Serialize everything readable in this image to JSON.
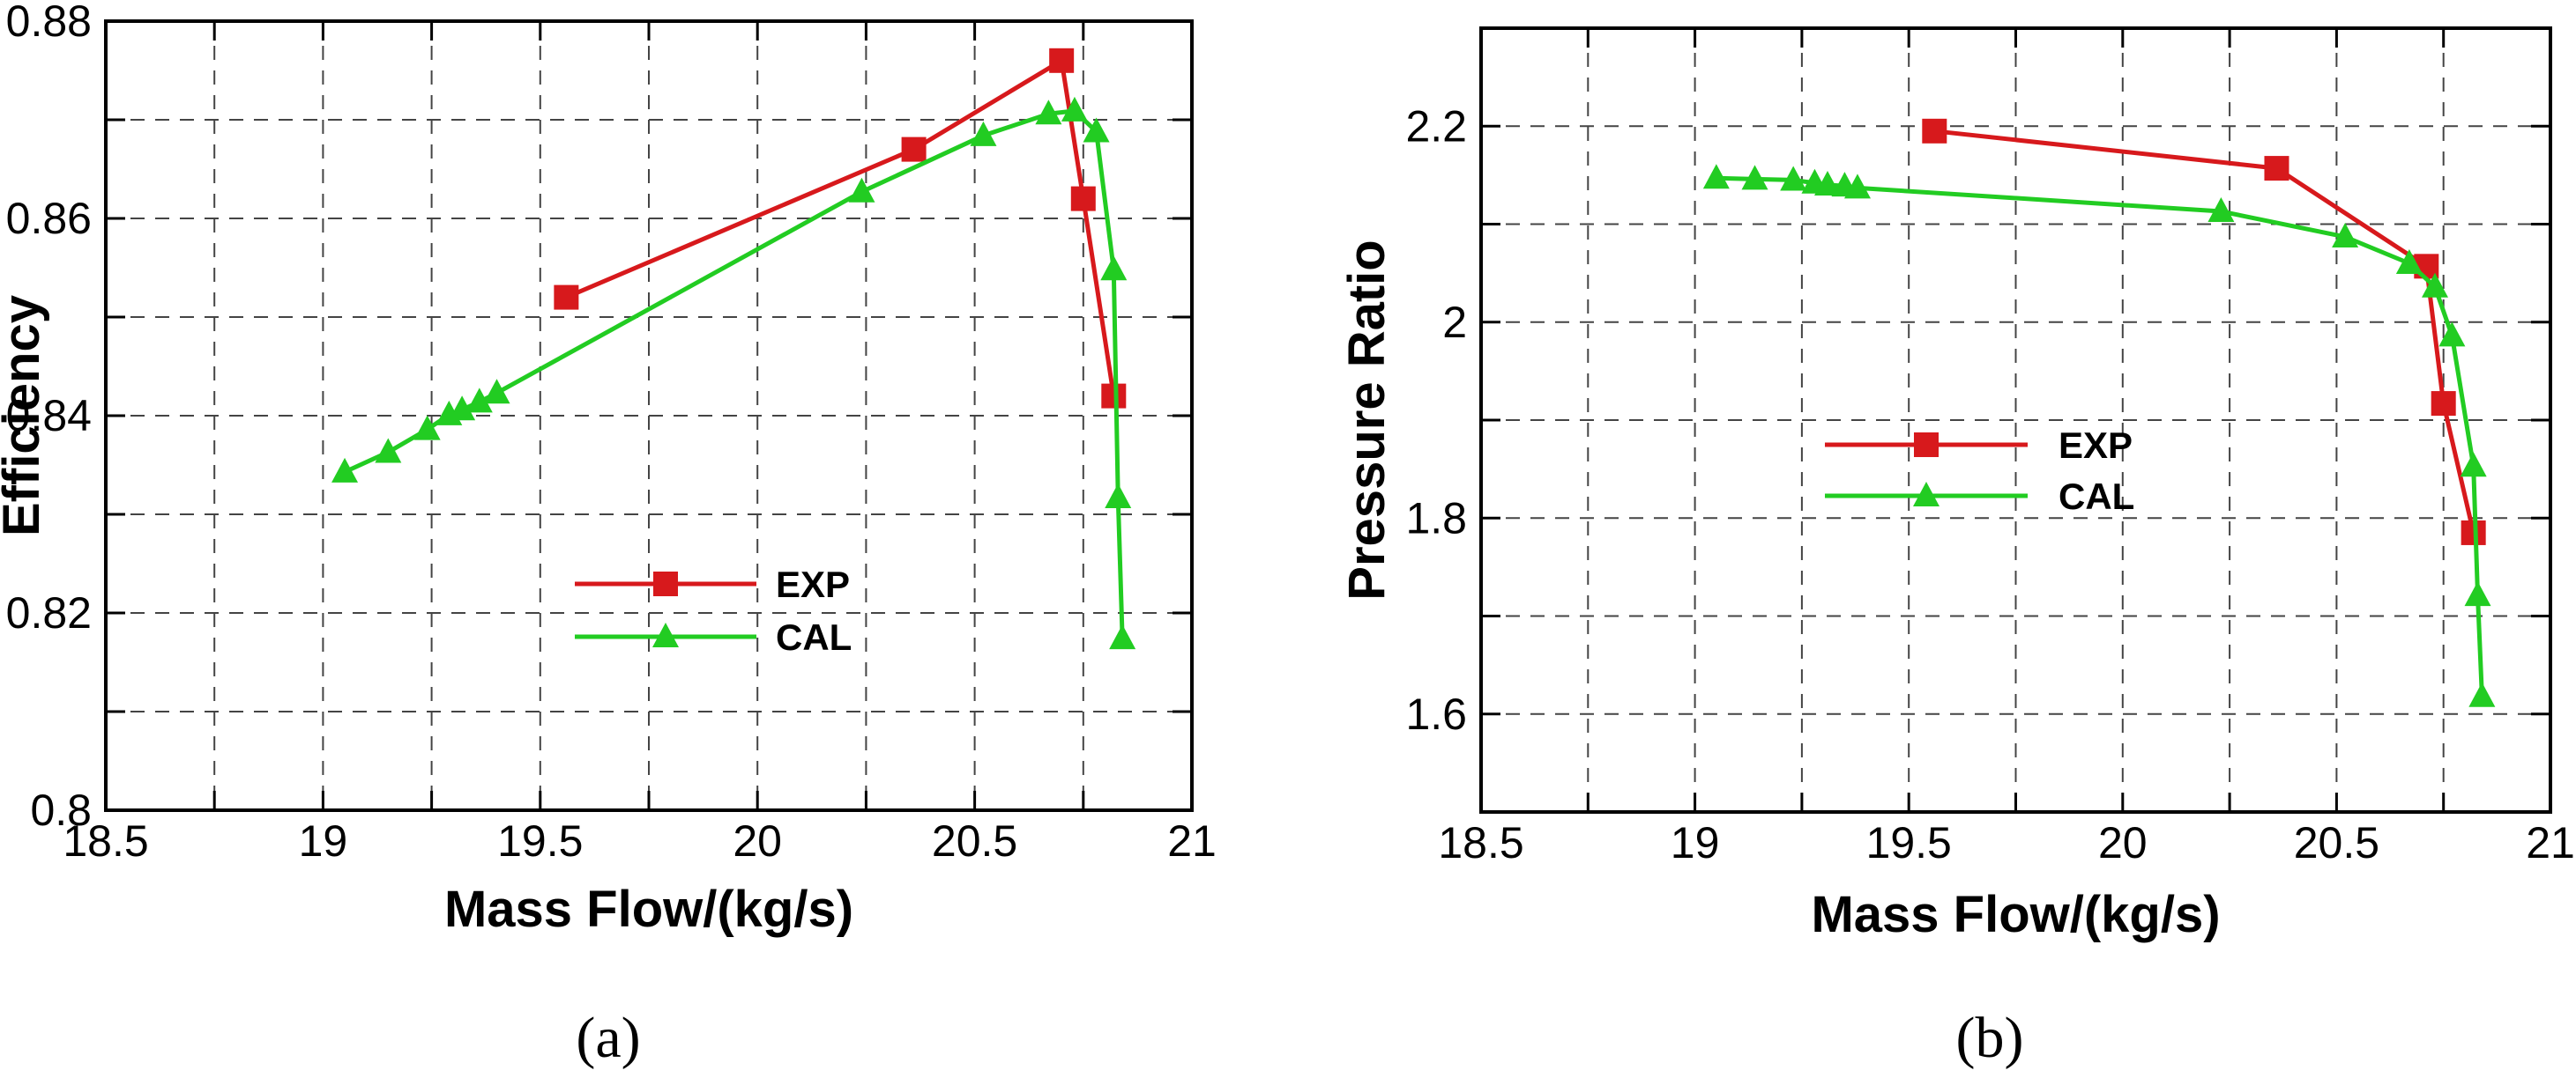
{
  "chart_data": [
    {
      "type": "line",
      "panel_label": "(a)",
      "xlabel": "Mass Flow/(kg/s)",
      "ylabel": "Efficiency",
      "xlim": [
        18.5,
        21
      ],
      "ylim": [
        0.8,
        0.88
      ],
      "xticks": [
        18.5,
        19,
        19.5,
        20,
        20.5,
        21
      ],
      "xtick_labels": [
        "18.5",
        "19",
        "19.5",
        "20",
        "20.5",
        "21"
      ],
      "yticks": [
        0.8,
        0.82,
        0.84,
        0.86,
        0.88
      ],
      "ytick_labels": [
        "0.8",
        "0.82",
        "0.84",
        "0.86",
        "0.88"
      ],
      "grid_x": [
        18.5,
        18.75,
        19,
        19.25,
        19.5,
        19.75,
        20,
        20.25,
        20.5,
        20.75,
        21
      ],
      "grid_y": [
        0.8,
        0.81,
        0.82,
        0.83,
        0.84,
        0.85,
        0.86,
        0.87,
        0.88
      ],
      "grid": true,
      "legend_position": "center-bottom",
      "series": [
        {
          "name": "EXP",
          "color": "#d7191c",
          "marker": "square",
          "x": [
            19.56,
            20.36,
            20.7,
            20.75,
            20.82
          ],
          "y": [
            0.852,
            0.867,
            0.876,
            0.862,
            0.842
          ]
        },
        {
          "name": "CAL",
          "color": "#22cc22",
          "marker": "triangle",
          "x": [
            19.05,
            19.15,
            19.24,
            19.29,
            19.32,
            19.36,
            19.4,
            20.24,
            20.52,
            20.67,
            20.73,
            20.78,
            20.82,
            20.83,
            20.84
          ],
          "y": [
            0.8343,
            0.8363,
            0.8386,
            0.8401,
            0.8406,
            0.8414,
            0.8423,
            0.8627,
            0.8684,
            0.8706,
            0.8709,
            0.8688,
            0.8548,
            0.8317,
            0.8174
          ]
        }
      ]
    },
    {
      "type": "line",
      "panel_label": "(b)",
      "xlabel": "Mass Flow/(kg/s)",
      "ylabel": "Pressure Ratio",
      "xlim": [
        18.5,
        21
      ],
      "ylim": [
        1.5,
        2.3
      ],
      "xticks": [
        18.5,
        19,
        19.5,
        20,
        20.5,
        21
      ],
      "xtick_labels": [
        "18.5",
        "19",
        "19.5",
        "20",
        "20.5",
        "21"
      ],
      "yticks": [
        1.6,
        1.8,
        2.0,
        2.2
      ],
      "ytick_labels": [
        "1.6",
        "1.8",
        "2",
        "2.2"
      ],
      "grid_x": [
        18.5,
        18.75,
        19,
        19.25,
        19.5,
        19.75,
        20,
        20.25,
        20.5,
        20.75,
        21
      ],
      "grid_y": [
        1.5,
        1.6,
        1.7,
        1.8,
        1.9,
        2.0,
        2.1,
        2.2,
        2.3
      ],
      "grid": true,
      "legend_position": "center",
      "series": [
        {
          "name": "EXP",
          "color": "#d7191c",
          "marker": "square",
          "x": [
            19.56,
            20.36,
            20.71,
            20.75,
            20.82
          ],
          "y": [
            2.195,
            2.157,
            2.057,
            1.917,
            1.785
          ]
        },
        {
          "name": "CAL",
          "color": "#22cc22",
          "marker": "triangle",
          "x": [
            19.05,
            19.14,
            19.23,
            19.28,
            19.31,
            19.35,
            19.38,
            20.23,
            20.52,
            20.67,
            20.73,
            20.77,
            20.82,
            20.83,
            20.84
          ],
          "y": [
            2.147,
            2.146,
            2.145,
            2.142,
            2.14,
            2.139,
            2.137,
            2.113,
            2.087,
            2.06,
            2.036,
            1.986,
            1.853,
            1.721,
            1.618
          ]
        }
      ]
    }
  ]
}
